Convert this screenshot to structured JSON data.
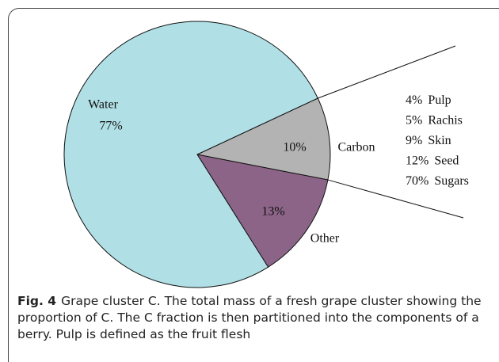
{
  "chart_data": {
    "type": "pie",
    "categories": [
      "Carbon",
      "Other",
      "Water"
    ],
    "values": [
      10,
      13,
      77
    ],
    "value_labels": [
      "10%",
      "13%",
      "77%"
    ],
    "colors": [
      "#b3b3b3",
      "#8c6487",
      "#b0e0e6"
    ],
    "breakdown": {
      "categories": [
        "Pulp",
        "Rachis",
        "Skin",
        "Seed",
        "Sugars"
      ],
      "values": [
        4,
        5,
        9,
        12,
        70
      ],
      "value_labels": [
        "4%",
        "5%",
        "9%",
        "12%",
        "70%"
      ]
    },
    "caption": {
      "label": "Fig. 4",
      "text": "Grape cluster C. The total mass of a fresh grape cluster showing the proportion of C. The C fraction is then partitioned into the components of a berry. Pulp is defined as the fruit flesh"
    }
  }
}
